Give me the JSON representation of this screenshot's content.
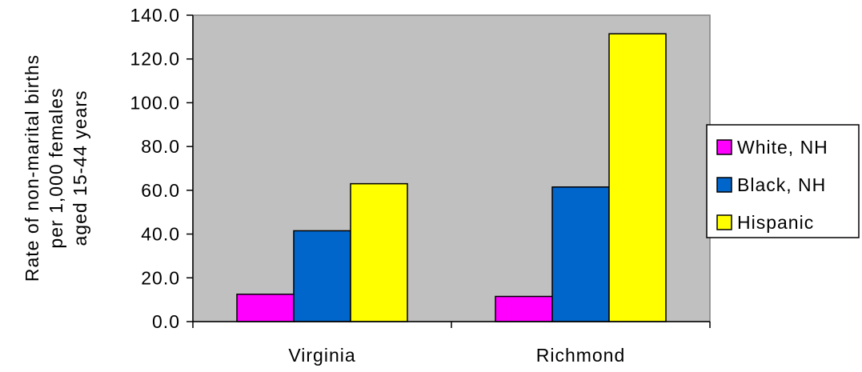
{
  "chart_data": {
    "type": "bar",
    "categories": [
      "Virginia",
      "Richmond"
    ],
    "series": [
      {
        "name": "White, NH",
        "values": [
          12.5,
          11.5
        ],
        "color": "#FF00FF"
      },
      {
        "name": "Black, NH",
        "values": [
          41.5,
          61.5
        ],
        "color": "#0066CC"
      },
      {
        "name": "Hispanic",
        "values": [
          63.0,
          131.5
        ],
        "color": "#FFFF00"
      }
    ],
    "ylabel_lines": [
      "Rate of non-marital births",
      "per 1,000 females",
      "aged 15-44 years"
    ],
    "xlabel": "",
    "ylim": [
      0,
      140
    ],
    "yticks": [
      "0.0",
      "20.0",
      "40.0",
      "60.0",
      "80.0",
      "100.0",
      "120.0",
      "140.0"
    ],
    "plot_background": "#C0C0C0",
    "grid": false,
    "legend_position": "right"
  }
}
